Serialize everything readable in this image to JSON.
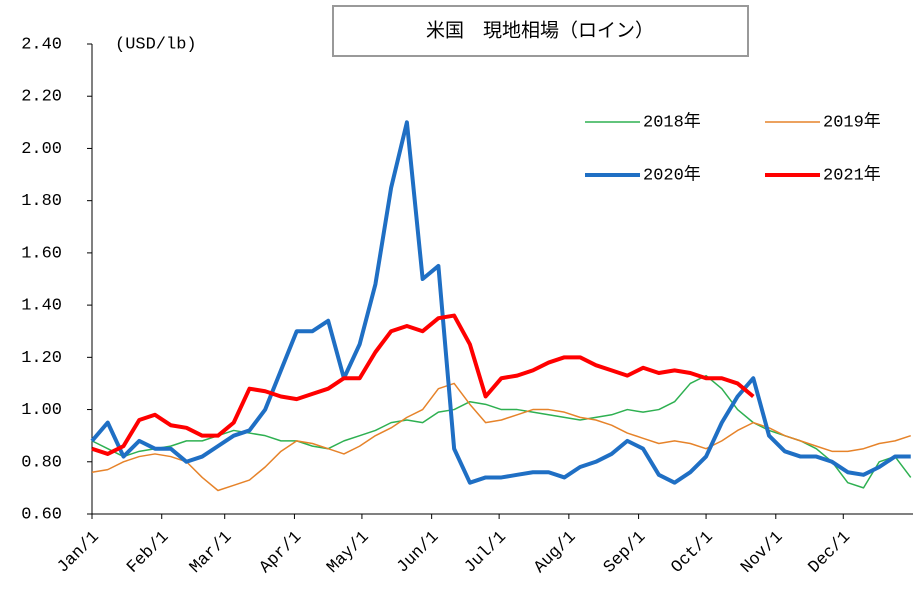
{
  "chart_data": {
    "type": "line",
    "title": "米国　現地相場（ロイン）",
    "y_label": "(USD/lb)",
    "x": [
      1,
      8,
      15,
      22,
      29,
      36,
      43,
      50,
      57,
      64,
      71,
      78,
      85,
      92,
      99,
      106,
      113,
      120,
      127,
      134,
      141,
      148,
      155,
      162,
      169,
      176,
      183,
      190,
      197,
      204,
      211,
      218,
      225,
      232,
      239,
      246,
      253,
      260,
      267,
      274,
      281,
      288,
      295,
      302,
      309,
      316,
      323,
      330,
      337,
      344,
      351,
      358,
      365
    ],
    "xlim": [
      1,
      366
    ],
    "xticks": [
      {
        "value": 1,
        "label": "Jan/1"
      },
      {
        "value": 32,
        "label": "Feb/1"
      },
      {
        "value": 60,
        "label": "Mar/1"
      },
      {
        "value": 91,
        "label": "Apr/1"
      },
      {
        "value": 121,
        "label": "May/1"
      },
      {
        "value": 152,
        "label": "Jun/1"
      },
      {
        "value": 182,
        "label": "Jul/1"
      },
      {
        "value": 213,
        "label": "Aug/1"
      },
      {
        "value": 244,
        "label": "Sep/1"
      },
      {
        "value": 274,
        "label": "Oct/1"
      },
      {
        "value": 305,
        "label": "Nov/1"
      },
      {
        "value": 335,
        "label": "Dec/1"
      }
    ],
    "ylim": [
      0.6,
      2.4
    ],
    "yticks": [
      {
        "value": 0.6,
        "label": "0.60"
      },
      {
        "value": 0.8,
        "label": "0.80"
      },
      {
        "value": 1.0,
        "label": "1.00"
      },
      {
        "value": 1.2,
        "label": "1.20"
      },
      {
        "value": 1.4,
        "label": "1.40"
      },
      {
        "value": 1.6,
        "label": "1.60"
      },
      {
        "value": 1.8,
        "label": "1.80"
      },
      {
        "value": 2.0,
        "label": "2.00"
      },
      {
        "value": 2.2,
        "label": "2.20"
      },
      {
        "value": 2.4,
        "label": "2.40"
      }
    ],
    "series": [
      {
        "name": "2018年",
        "color": "#2eb051",
        "values": [
          0.88,
          0.85,
          0.82,
          0.84,
          0.85,
          0.86,
          0.88,
          0.88,
          0.9,
          0.92,
          0.91,
          0.9,
          0.88,
          0.88,
          0.86,
          0.85,
          0.88,
          0.9,
          0.92,
          0.95,
          0.96,
          0.95,
          0.99,
          1.0,
          1.03,
          1.02,
          1.0,
          1.0,
          0.99,
          0.98,
          0.97,
          0.96,
          0.97,
          0.98,
          1.0,
          0.99,
          1.0,
          1.03,
          1.1,
          1.13,
          1.08,
          1.0,
          0.95,
          0.92,
          0.9,
          0.88,
          0.85,
          0.8,
          0.72,
          0.7,
          0.8,
          0.82,
          0.74
        ]
      },
      {
        "name": "2019年",
        "color": "#e6832a",
        "values": [
          0.76,
          0.77,
          0.8,
          0.82,
          0.83,
          0.82,
          0.8,
          0.74,
          0.69,
          0.71,
          0.73,
          0.78,
          0.84,
          0.88,
          0.87,
          0.85,
          0.83,
          0.86,
          0.9,
          0.93,
          0.97,
          1.0,
          1.08,
          1.1,
          1.02,
          0.95,
          0.96,
          0.98,
          1.0,
          1.0,
          0.99,
          0.97,
          0.96,
          0.94,
          0.91,
          0.89,
          0.87,
          0.88,
          0.87,
          0.85,
          0.88,
          0.92,
          0.95,
          0.93,
          0.9,
          0.88,
          0.86,
          0.84,
          0.84,
          0.85,
          0.87,
          0.88,
          0.9
        ]
      },
      {
        "name": "2020年",
        "color": "#1f6fc4",
        "values": [
          0.88,
          0.95,
          0.82,
          0.88,
          0.85,
          0.85,
          0.8,
          0.82,
          0.86,
          0.9,
          0.92,
          1.0,
          1.15,
          1.3,
          1.3,
          1.34,
          1.12,
          1.25,
          1.48,
          1.85,
          2.1,
          1.5,
          1.55,
          0.85,
          0.72,
          0.74,
          0.74,
          0.75,
          0.76,
          0.76,
          0.74,
          0.78,
          0.8,
          0.83,
          0.88,
          0.85,
          0.75,
          0.72,
          0.76,
          0.82,
          0.95,
          1.05,
          1.12,
          0.9,
          0.84,
          0.82,
          0.82,
          0.8,
          0.76,
          0.75,
          0.78,
          0.82,
          0.82
        ]
      },
      {
        "name": "2021年",
        "color": "#ff0000",
        "values": [
          0.85,
          0.83,
          0.86,
          0.96,
          0.98,
          0.94,
          0.93,
          0.9,
          0.9,
          0.95,
          1.08,
          1.07,
          1.05,
          1.04,
          1.06,
          1.08,
          1.12,
          1.12,
          1.22,
          1.3,
          1.32,
          1.3,
          1.35,
          1.36,
          1.25,
          1.05,
          1.12,
          1.13,
          1.15,
          1.18,
          1.2,
          1.2,
          1.17,
          1.15,
          1.13,
          1.16,
          1.14,
          1.15,
          1.14,
          1.12,
          1.12,
          1.1,
          1.05,
          null,
          null,
          null,
          null,
          null,
          null,
          null,
          null,
          null,
          null
        ]
      }
    ]
  }
}
